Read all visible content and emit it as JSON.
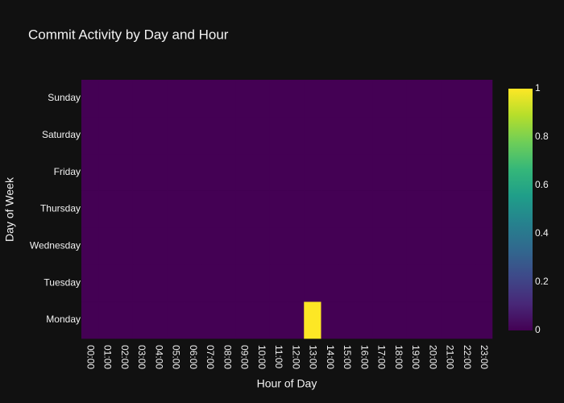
{
  "chart_data": {
    "type": "heatmap",
    "title": "Commit Activity by Day and Hour",
    "xlabel": "Hour of Day",
    "ylabel": "Day of Week",
    "x": [
      "00:00",
      "01:00",
      "02:00",
      "03:00",
      "04:00",
      "05:00",
      "06:00",
      "07:00",
      "08:00",
      "09:00",
      "10:00",
      "11:00",
      "12:00",
      "13:00",
      "14:00",
      "15:00",
      "16:00",
      "17:00",
      "18:00",
      "19:00",
      "20:00",
      "21:00",
      "22:00",
      "23:00"
    ],
    "y": [
      "Monday",
      "Tuesday",
      "Wednesday",
      "Thursday",
      "Friday",
      "Saturday",
      "Sunday"
    ],
    "z": [
      [
        0,
        0,
        0,
        0,
        0,
        0,
        0,
        0,
        0,
        0,
        0,
        0,
        0,
        1,
        0,
        0,
        0,
        0,
        0,
        0,
        0,
        0,
        0,
        0
      ],
      [
        0,
        0,
        0,
        0,
        0,
        0,
        0,
        0,
        0,
        0,
        0,
        0,
        0,
        0,
        0,
        0,
        0,
        0,
        0,
        0,
        0,
        0,
        0,
        0
      ],
      [
        0,
        0,
        0,
        0,
        0,
        0,
        0,
        0,
        0,
        0,
        0,
        0,
        0,
        0,
        0,
        0,
        0,
        0,
        0,
        0,
        0,
        0,
        0,
        0
      ],
      [
        0,
        0,
        0,
        0,
        0,
        0,
        0,
        0,
        0,
        0,
        0,
        0,
        0,
        0,
        0,
        0,
        0,
        0,
        0,
        0,
        0,
        0,
        0,
        0
      ],
      [
        0,
        0,
        0,
        0,
        0,
        0,
        0,
        0,
        0,
        0,
        0,
        0,
        0,
        0,
        0,
        0,
        0,
        0,
        0,
        0,
        0,
        0,
        0,
        0
      ],
      [
        0,
        0,
        0,
        0,
        0,
        0,
        0,
        0,
        0,
        0,
        0,
        0,
        0,
        0,
        0,
        0,
        0,
        0,
        0,
        0,
        0,
        0,
        0,
        0
      ],
      [
        0,
        0,
        0,
        0,
        0,
        0,
        0,
        0,
        0,
        0,
        0,
        0,
        0,
        0,
        0,
        0,
        0,
        0,
        0,
        0,
        0,
        0,
        0,
        0
      ]
    ],
    "zlim": [
      0,
      1
    ],
    "zticks": [
      0,
      0.2,
      0.4,
      0.6,
      0.8,
      1
    ],
    "colorscale": [
      "#440154",
      "#482878",
      "#3e4989",
      "#31688e",
      "#26828e",
      "#1f9e89",
      "#35b779",
      "#6ece58",
      "#b5de2b",
      "#fde725"
    ]
  }
}
